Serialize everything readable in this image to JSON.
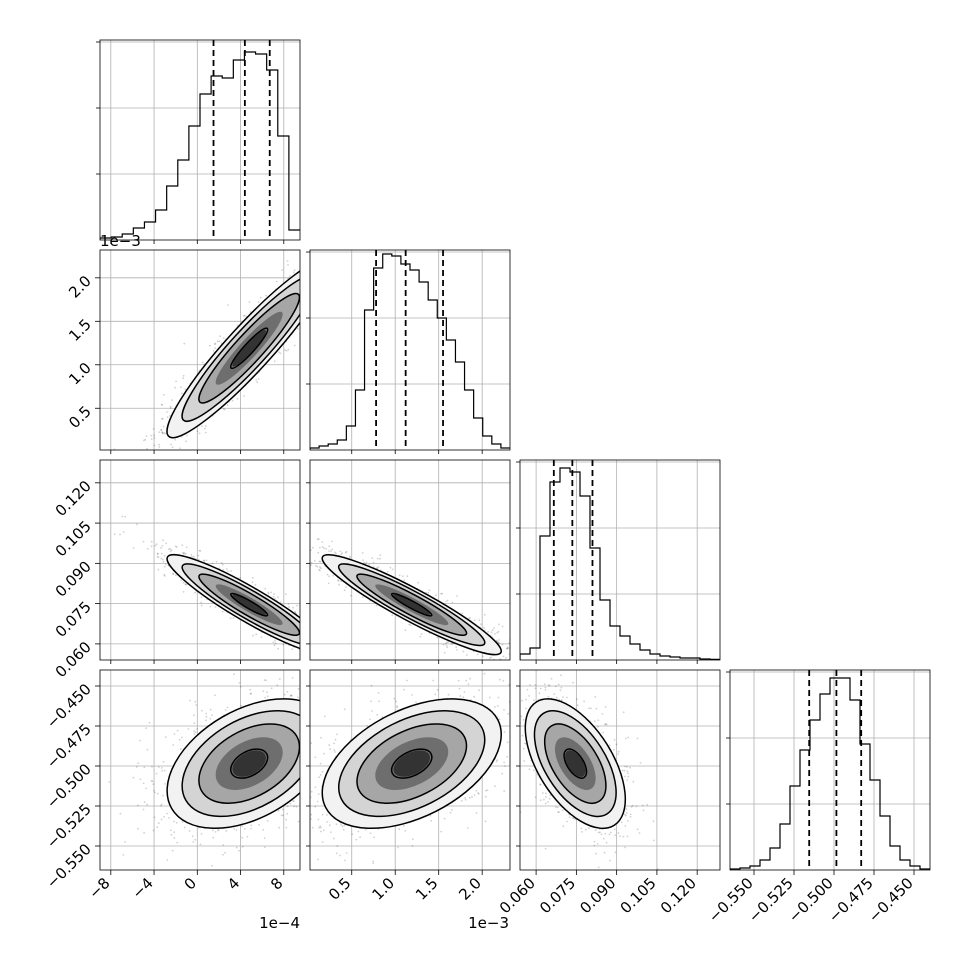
{
  "chart_data": {
    "type": "corner",
    "parameters": [
      {
        "range": [
          -0.0009,
          0.00095
        ],
        "ticks": [
          -0.0008,
          -0.0004,
          0,
          0.0004,
          0.0008
        ],
        "tick_labels": [
          "−8",
          "−4",
          "0",
          "4",
          "8"
        ],
        "offset_label": "1e−4",
        "quantiles": [
          0.00015,
          0.00044,
          0.00067
        ],
        "hist_values": [
          0.01,
          0.015,
          0.03,
          0.06,
          0.09,
          0.15,
          0.27,
          0.4,
          0.57,
          0.73,
          0.82,
          0.81,
          0.9,
          0.94,
          0.93,
          0.85,
          0.52,
          0.05
        ]
      },
      {
        "range": [
          2e-05,
          0.00232
        ],
        "ticks": [
          0.0005,
          0.001,
          0.0015,
          0.002
        ],
        "tick_labels": [
          "0.5",
          "1.0",
          "1.5",
          "2.0"
        ],
        "offset_label": "1e−3",
        "quantiles": [
          0.00078,
          0.00112,
          0.00155
        ],
        "hist_values": [
          0.01,
          0.02,
          0.03,
          0.05,
          0.12,
          0.3,
          0.7,
          0.91,
          0.98,
          0.97,
          0.93,
          0.9,
          0.84,
          0.75,
          0.66,
          0.55,
          0.44,
          0.3,
          0.16,
          0.07,
          0.03,
          0.01
        ]
      },
      {
        "range": [
          0.054,
          0.1285
        ],
        "ticks": [
          0.06,
          0.075,
          0.09,
          0.105,
          0.12
        ],
        "tick_labels": [
          "0.060",
          "0.075",
          "0.090",
          "0.105",
          "0.120"
        ],
        "offset_label": "",
        "quantiles": [
          0.0666,
          0.0735,
          0.081
        ],
        "hist_values": [
          0.03,
          0.06,
          0.62,
          0.89,
          0.96,
          0.94,
          0.82,
          0.56,
          0.3,
          0.17,
          0.12,
          0.08,
          0.05,
          0.03,
          0.02,
          0.015,
          0.01,
          0.01,
          0.005,
          0.003
        ]
      },
      {
        "range": [
          -0.565,
          -0.44
        ],
        "ticks": [
          -0.55,
          -0.525,
          -0.5,
          -0.475,
          -0.45
        ],
        "tick_labels": [
          "−0.550",
          "−0.525",
          "−0.500",
          "−0.475",
          "−0.450"
        ],
        "offset_label": "",
        "quantiles": [
          -0.5155,
          -0.4985,
          -0.483
        ],
        "hist_values": [
          0.005,
          0.01,
          0.02,
          0.05,
          0.11,
          0.23,
          0.42,
          0.6,
          0.75,
          0.88,
          0.96,
          0.96,
          0.85,
          0.63,
          0.45,
          0.27,
          0.12,
          0.05,
          0.02,
          0.005
        ]
      }
    ],
    "hist_ymax": 1.0,
    "scatter_panels": [
      {
        "x": 0,
        "y": 1,
        "mean": [
          0.00048,
          0.00119
        ],
        "sd": [
          0.00031,
          0.00042
        ],
        "corr": 0.93
      },
      {
        "x": 0,
        "y": 2,
        "mean": [
          0.00048,
          0.0746
        ],
        "sd": [
          0.00031,
          0.0076
        ],
        "corr": -0.92
      },
      {
        "x": 0,
        "y": 3,
        "mean": [
          0.00048,
          -0.4985
        ],
        "sd": [
          0.00031,
          0.0165
        ],
        "corr": 0.42
      },
      {
        "x": 1,
        "y": 2,
        "mean": [
          0.00119,
          0.0746
        ],
        "sd": [
          0.00042,
          0.0076
        ],
        "corr": -0.93
      },
      {
        "x": 1,
        "y": 3,
        "mean": [
          0.00119,
          -0.4985
        ],
        "sd": [
          0.00042,
          0.0165
        ],
        "corr": 0.45
      },
      {
        "x": 2,
        "y": 3,
        "mean": [
          0.0746,
          -0.4985
        ],
        "sd": [
          0.0076,
          0.0165
        ],
        "corr": -0.55
      }
    ],
    "grid": true
  }
}
